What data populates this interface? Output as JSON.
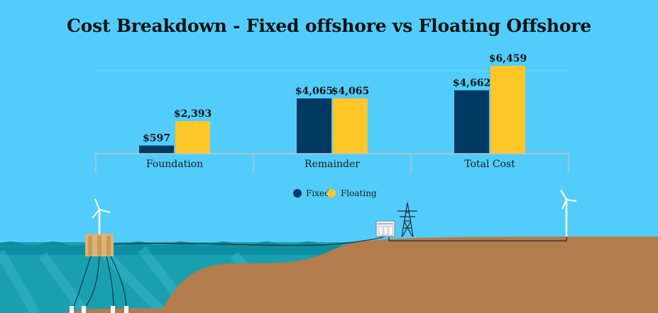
{
  "chart_data": {
    "type": "bar",
    "title": "Cost Breakdown - Fixed offshore vs Floating Offshore",
    "categories": [
      "Foundation",
      "Remainder",
      "Total Cost"
    ],
    "series": [
      {
        "name": "Fixed",
        "values": [
          597,
          4065,
          4662
        ],
        "labels": [
          "$597",
          "$4,065",
          "$4,662"
        ],
        "color": "#003a63"
      },
      {
        "name": "Floating",
        "values": [
          2393,
          4065,
          6459
        ],
        "labels": [
          "$2,393",
          "$4,065",
          "$6,459"
        ],
        "color": "#ffc627"
      }
    ],
    "ylim": [
      0,
      6459
    ],
    "grid": false,
    "legend": "bottom-center"
  },
  "illustration": {
    "sea_color": "#1a9fb0",
    "land_color": "#b27c4c",
    "sky_color": "#52cdfb",
    "icons": [
      "floating-wind-turbine-icon",
      "substation-icon",
      "transmission-tower-icon",
      "onshore-wind-turbine-icon"
    ]
  }
}
